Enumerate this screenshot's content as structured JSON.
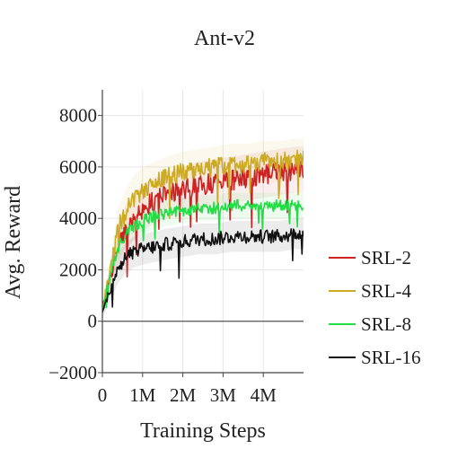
{
  "chart_data": {
    "type": "line",
    "title": "Ant-v2",
    "xlabel": "Training Steps",
    "ylabel": "Avg. Reward",
    "xlim": [
      0,
      5000000
    ],
    "ylim": [
      -2000,
      9000
    ],
    "x_ticks": [
      {
        "value": 0,
        "label": "0"
      },
      {
        "value": 1000000,
        "label": "1M"
      },
      {
        "value": 2000000,
        "label": "2M"
      },
      {
        "value": 3000000,
        "label": "3M"
      },
      {
        "value": 4000000,
        "label": "4M"
      }
    ],
    "y_ticks": [
      {
        "value": -2000,
        "label": "−2000"
      },
      {
        "value": 0,
        "label": "0"
      },
      {
        "value": 2000,
        "label": "2000"
      },
      {
        "value": 4000,
        "label": "4000"
      },
      {
        "value": 6000,
        "label": "6000"
      },
      {
        "value": 8000,
        "label": "8000"
      }
    ],
    "grid": true,
    "zero_line": true,
    "legend_position": "right",
    "shaded_bands": true,
    "x": [
      0,
      200000,
      400000,
      600000,
      800000,
      1000000,
      1300000,
      1600000,
      2000000,
      2400000,
      2800000,
      3200000,
      3600000,
      4000000,
      4400000,
      4800000,
      5000000
    ],
    "series": [
      {
        "name": "SRL-2",
        "color": "#cc2222",
        "values": [
          500,
          1700,
          3000,
          3700,
          4100,
          4400,
          4700,
          4900,
          5100,
          5300,
          5400,
          5500,
          5600,
          5700,
          5800,
          5900,
          5900
        ],
        "spread": [
          200,
          500,
          800,
          900,
          900,
          900,
          900,
          900,
          900,
          900,
          900,
          900,
          900,
          900,
          900,
          900,
          900
        ]
      },
      {
        "name": "SRL-4",
        "color": "#ccaa22",
        "values": [
          500,
          2000,
          3600,
          4300,
          4800,
          5100,
          5400,
          5600,
          5800,
          5900,
          6000,
          6100,
          6100,
          6200,
          6200,
          6300,
          6300
        ],
        "spread": [
          200,
          600,
          900,
          900,
          900,
          900,
          800,
          800,
          800,
          800,
          800,
          800,
          800,
          800,
          800,
          800,
          800
        ]
      },
      {
        "name": "SRL-8",
        "color": "#22dd44",
        "values": [
          500,
          1800,
          2900,
          3400,
          3700,
          3900,
          4100,
          4200,
          4300,
          4400,
          4400,
          4500,
          4500,
          4500,
          4500,
          4500,
          4500
        ],
        "spread": [
          200,
          400,
          500,
          500,
          500,
          500,
          500,
          500,
          500,
          500,
          500,
          500,
          500,
          500,
          500,
          500,
          500
        ]
      },
      {
        "name": "SRL-16",
        "color": "#111111",
        "values": [
          300,
          1300,
          2100,
          2500,
          2700,
          2800,
          2900,
          3000,
          3100,
          3200,
          3200,
          3300,
          3300,
          3300,
          3300,
          3400,
          3400
        ],
        "spread": [
          200,
          500,
          600,
          600,
          600,
          600,
          600,
          600,
          600,
          600,
          600,
          600,
          600,
          600,
          600,
          600,
          600
        ]
      }
    ]
  }
}
